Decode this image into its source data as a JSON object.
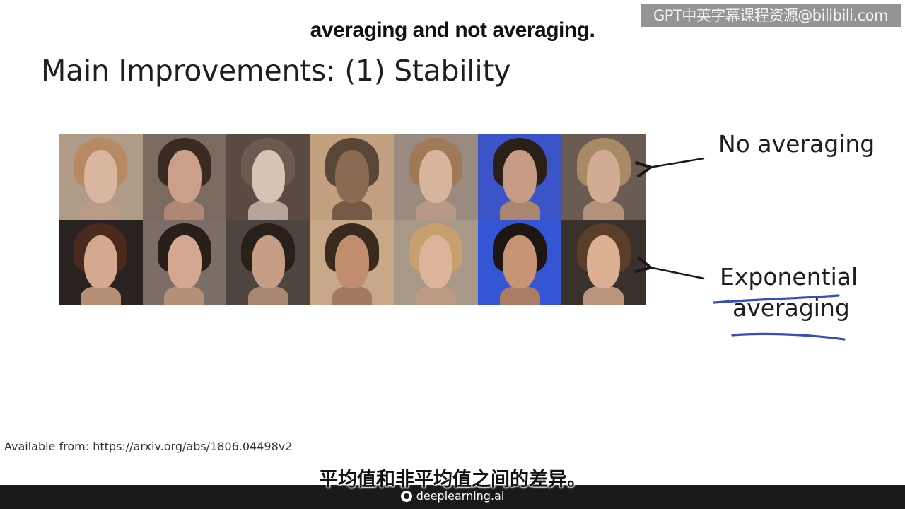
{
  "overlay": {
    "watermark": "GPT中英字幕课程资源@bilibili.com",
    "subtitle_en": "averaging and not averaging.",
    "subtitle_zh": "平均值和非平均值之间的差异。"
  },
  "slide": {
    "title": "Main Improvements: (1) Stability",
    "label_no_averaging": "No averaging",
    "label_exponential_line1": "Exponential",
    "label_exponential_line2": "averaging",
    "citation": "Available from: https://arxiv.org/abs/1806.04498v2"
  },
  "faces": {
    "top_row": [
      {
        "bg": "#b09a88",
        "skin": "#d9b6a0",
        "hair": "#b88a63"
      },
      {
        "bg": "#7a6a60",
        "skin": "#caa08a",
        "hair": "#3a2a22"
      },
      {
        "bg": "#5a4a42",
        "skin": "#d8c2b4",
        "hair": "#6a5a50"
      },
      {
        "bg": "#c2a080",
        "skin": "#8a6a52",
        "hair": "#5a4636"
      },
      {
        "bg": "#9a8a80",
        "skin": "#d8b49c",
        "hair": "#a07a58"
      },
      {
        "bg": "#3b55c8",
        "skin": "#c89c84",
        "hair": "#2a2018"
      },
      {
        "bg": "#6a5c52",
        "skin": "#d2ac92",
        "hair": "#a88a66"
      }
    ],
    "bottom_row": [
      {
        "bg": "#2a2220",
        "skin": "#d6a88e",
        "hair": "#4a2a1c"
      },
      {
        "bg": "#7c6e66",
        "skin": "#d4a890",
        "hair": "#2a1e18"
      },
      {
        "bg": "#4e4440",
        "skin": "#c69e86",
        "hair": "#2a201a"
      },
      {
        "bg": "#c8a888",
        "skin": "#c08e6e",
        "hair": "#3a2a1e"
      },
      {
        "bg": "#a89888",
        "skin": "#dcb49a",
        "hair": "#c8a070"
      },
      {
        "bg": "#3456d4",
        "skin": "#c89476",
        "hair": "#1e1612"
      },
      {
        "bg": "#3a302c",
        "skin": "#dcae92",
        "hair": "#5a3e28"
      }
    ]
  },
  "colors": {
    "annotation_underline": "#3450c0",
    "arrow": "#1a1a1a"
  },
  "footer": {
    "brand": "deeplearning.ai",
    "logo_icon": "deeplearning-logo-icon"
  }
}
